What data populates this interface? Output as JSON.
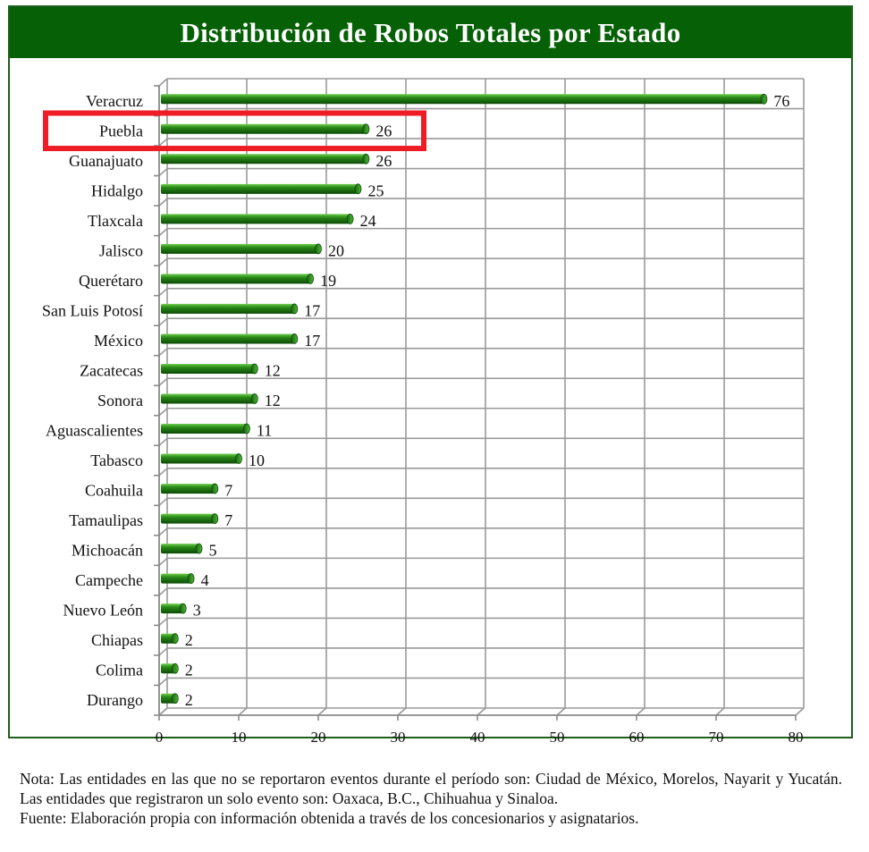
{
  "chart_data": {
    "type": "bar",
    "orientation": "horizontal",
    "title": "Distribución de Robos Totales por Estado",
    "categories": [
      "Veracruz",
      "Puebla",
      "Guanajuato",
      "Hidalgo",
      "Tlaxcala",
      "Jalisco",
      "Querétaro",
      "San Luis Potosí",
      "México",
      "Zacatecas",
      "Sonora",
      "Aguascalientes",
      "Tabasco",
      "Coahuila",
      "Tamaulipas",
      "Michoacán",
      "Campeche",
      "Nuevo León",
      "Chiapas",
      "Colima",
      "Durango"
    ],
    "values": [
      76,
      26,
      26,
      25,
      24,
      20,
      19,
      17,
      17,
      12,
      12,
      11,
      10,
      7,
      7,
      5,
      4,
      3,
      2,
      2,
      2
    ],
    "value_labels": [
      "76",
      "26",
      "26",
      "25",
      "24",
      "20",
      "19",
      "17",
      "17",
      "12",
      "12",
      "11",
      "10",
      "7",
      "7",
      "5",
      "4",
      "3",
      "2",
      "2",
      "2"
    ],
    "xlim": [
      0,
      80
    ],
    "x_ticks": [
      "0",
      "10",
      "20",
      "30",
      "40",
      "50",
      "60",
      "70",
      "80"
    ],
    "grid": true,
    "bar_color": "#1f7a12",
    "highlight": {
      "category": "Puebla",
      "color": "#ee1c24"
    }
  },
  "notes": {
    "nota": "Nota: Las entidades en las que no se reportaron eventos durante el período son: Ciudad de México, Morelos, Nayarit y Yucatán. Las entidades que registraron un solo evento son: Oaxaca, B.C., Chihuahua y Sinaloa.",
    "fuente": "Fuente: Elaboración propia con información obtenida a través de los concesionarios y asignatarios."
  }
}
